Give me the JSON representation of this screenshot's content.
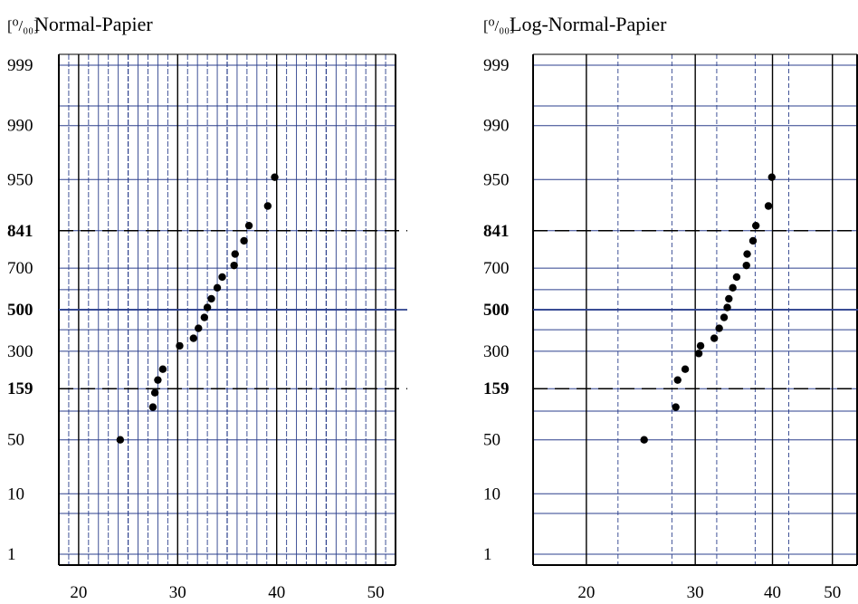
{
  "chart_data": [
    {
      "type": "scatter",
      "title": "Normal-Papier",
      "ylabel_unit": "[⁰/₀₀]",
      "x_scale": "linear",
      "xlim": [
        18,
        52
      ],
      "x_ticks": [
        "20",
        "30",
        "40",
        "50"
      ],
      "x_tick_values": [
        20,
        30,
        40,
        50
      ],
      "y_scale": "probability (permille)",
      "y_ticks": [
        "999",
        "990",
        "950",
        "841",
        "700",
        "500",
        "300",
        "159",
        "50",
        "10",
        "1"
      ],
      "y_tick_values": [
        999,
        990,
        950,
        841,
        700,
        500,
        300,
        159,
        50,
        10,
        1
      ],
      "y_bold_ticks": [
        "841",
        "500",
        "159"
      ],
      "dashed_reference_lines": [
        841,
        159
      ],
      "grid": true,
      "points": [
        {
          "x": 24.2,
          "y": 50
        },
        {
          "x": 27.5,
          "y": 109
        },
        {
          "x": 27.7,
          "y": 147
        },
        {
          "x": 28.0,
          "y": 187
        },
        {
          "x": 28.5,
          "y": 226
        },
        {
          "x": 30.2,
          "y": 324
        },
        {
          "x": 31.6,
          "y": 359
        },
        {
          "x": 32.1,
          "y": 407
        },
        {
          "x": 32.7,
          "y": 461
        },
        {
          "x": 33.0,
          "y": 511
        },
        {
          "x": 33.4,
          "y": 555
        },
        {
          "x": 34.0,
          "y": 609
        },
        {
          "x": 34.5,
          "y": 660
        },
        {
          "x": 35.7,
          "y": 712
        },
        {
          "x": 35.8,
          "y": 759
        },
        {
          "x": 36.7,
          "y": 808
        },
        {
          "x": 37.2,
          "y": 856
        },
        {
          "x": 39.1,
          "y": 905
        },
        {
          "x": 39.8,
          "y": 953
        }
      ]
    },
    {
      "type": "scatter",
      "title": "Log-Normal-Papier",
      "ylabel_unit": "[⁰/₀₀]",
      "x_scale": "log",
      "xlim": [
        16.4,
        55
      ],
      "x_ticks": [
        "20",
        "30",
        "40",
        "50"
      ],
      "x_tick_values": [
        20,
        30,
        40,
        50
      ],
      "y_scale": "probability (permille)",
      "y_ticks": [
        "999",
        "990",
        "950",
        "841",
        "700",
        "500",
        "300",
        "159",
        "50",
        "10",
        "1"
      ],
      "y_tick_values": [
        999,
        990,
        950,
        841,
        700,
        500,
        300,
        159,
        50,
        10,
        1
      ],
      "y_bold_ticks": [
        "841",
        "500",
        "159"
      ],
      "dashed_reference_lines": [
        841,
        159
      ],
      "grid": true,
      "points": [
        {
          "x": 24.8,
          "y": 50
        },
        {
          "x": 27.9,
          "y": 109
        },
        {
          "x": 28.1,
          "y": 187
        },
        {
          "x": 28.9,
          "y": 226
        },
        {
          "x": 30.4,
          "y": 290
        },
        {
          "x": 30.6,
          "y": 324
        },
        {
          "x": 32.2,
          "y": 359
        },
        {
          "x": 32.8,
          "y": 407
        },
        {
          "x": 33.4,
          "y": 461
        },
        {
          "x": 33.8,
          "y": 511
        },
        {
          "x": 34.0,
          "y": 555
        },
        {
          "x": 34.5,
          "y": 609
        },
        {
          "x": 35.0,
          "y": 660
        },
        {
          "x": 36.3,
          "y": 712
        },
        {
          "x": 36.4,
          "y": 759
        },
        {
          "x": 37.2,
          "y": 808
        },
        {
          "x": 37.6,
          "y": 856
        },
        {
          "x": 39.4,
          "y": 905
        },
        {
          "x": 39.9,
          "y": 953
        }
      ]
    }
  ]
}
